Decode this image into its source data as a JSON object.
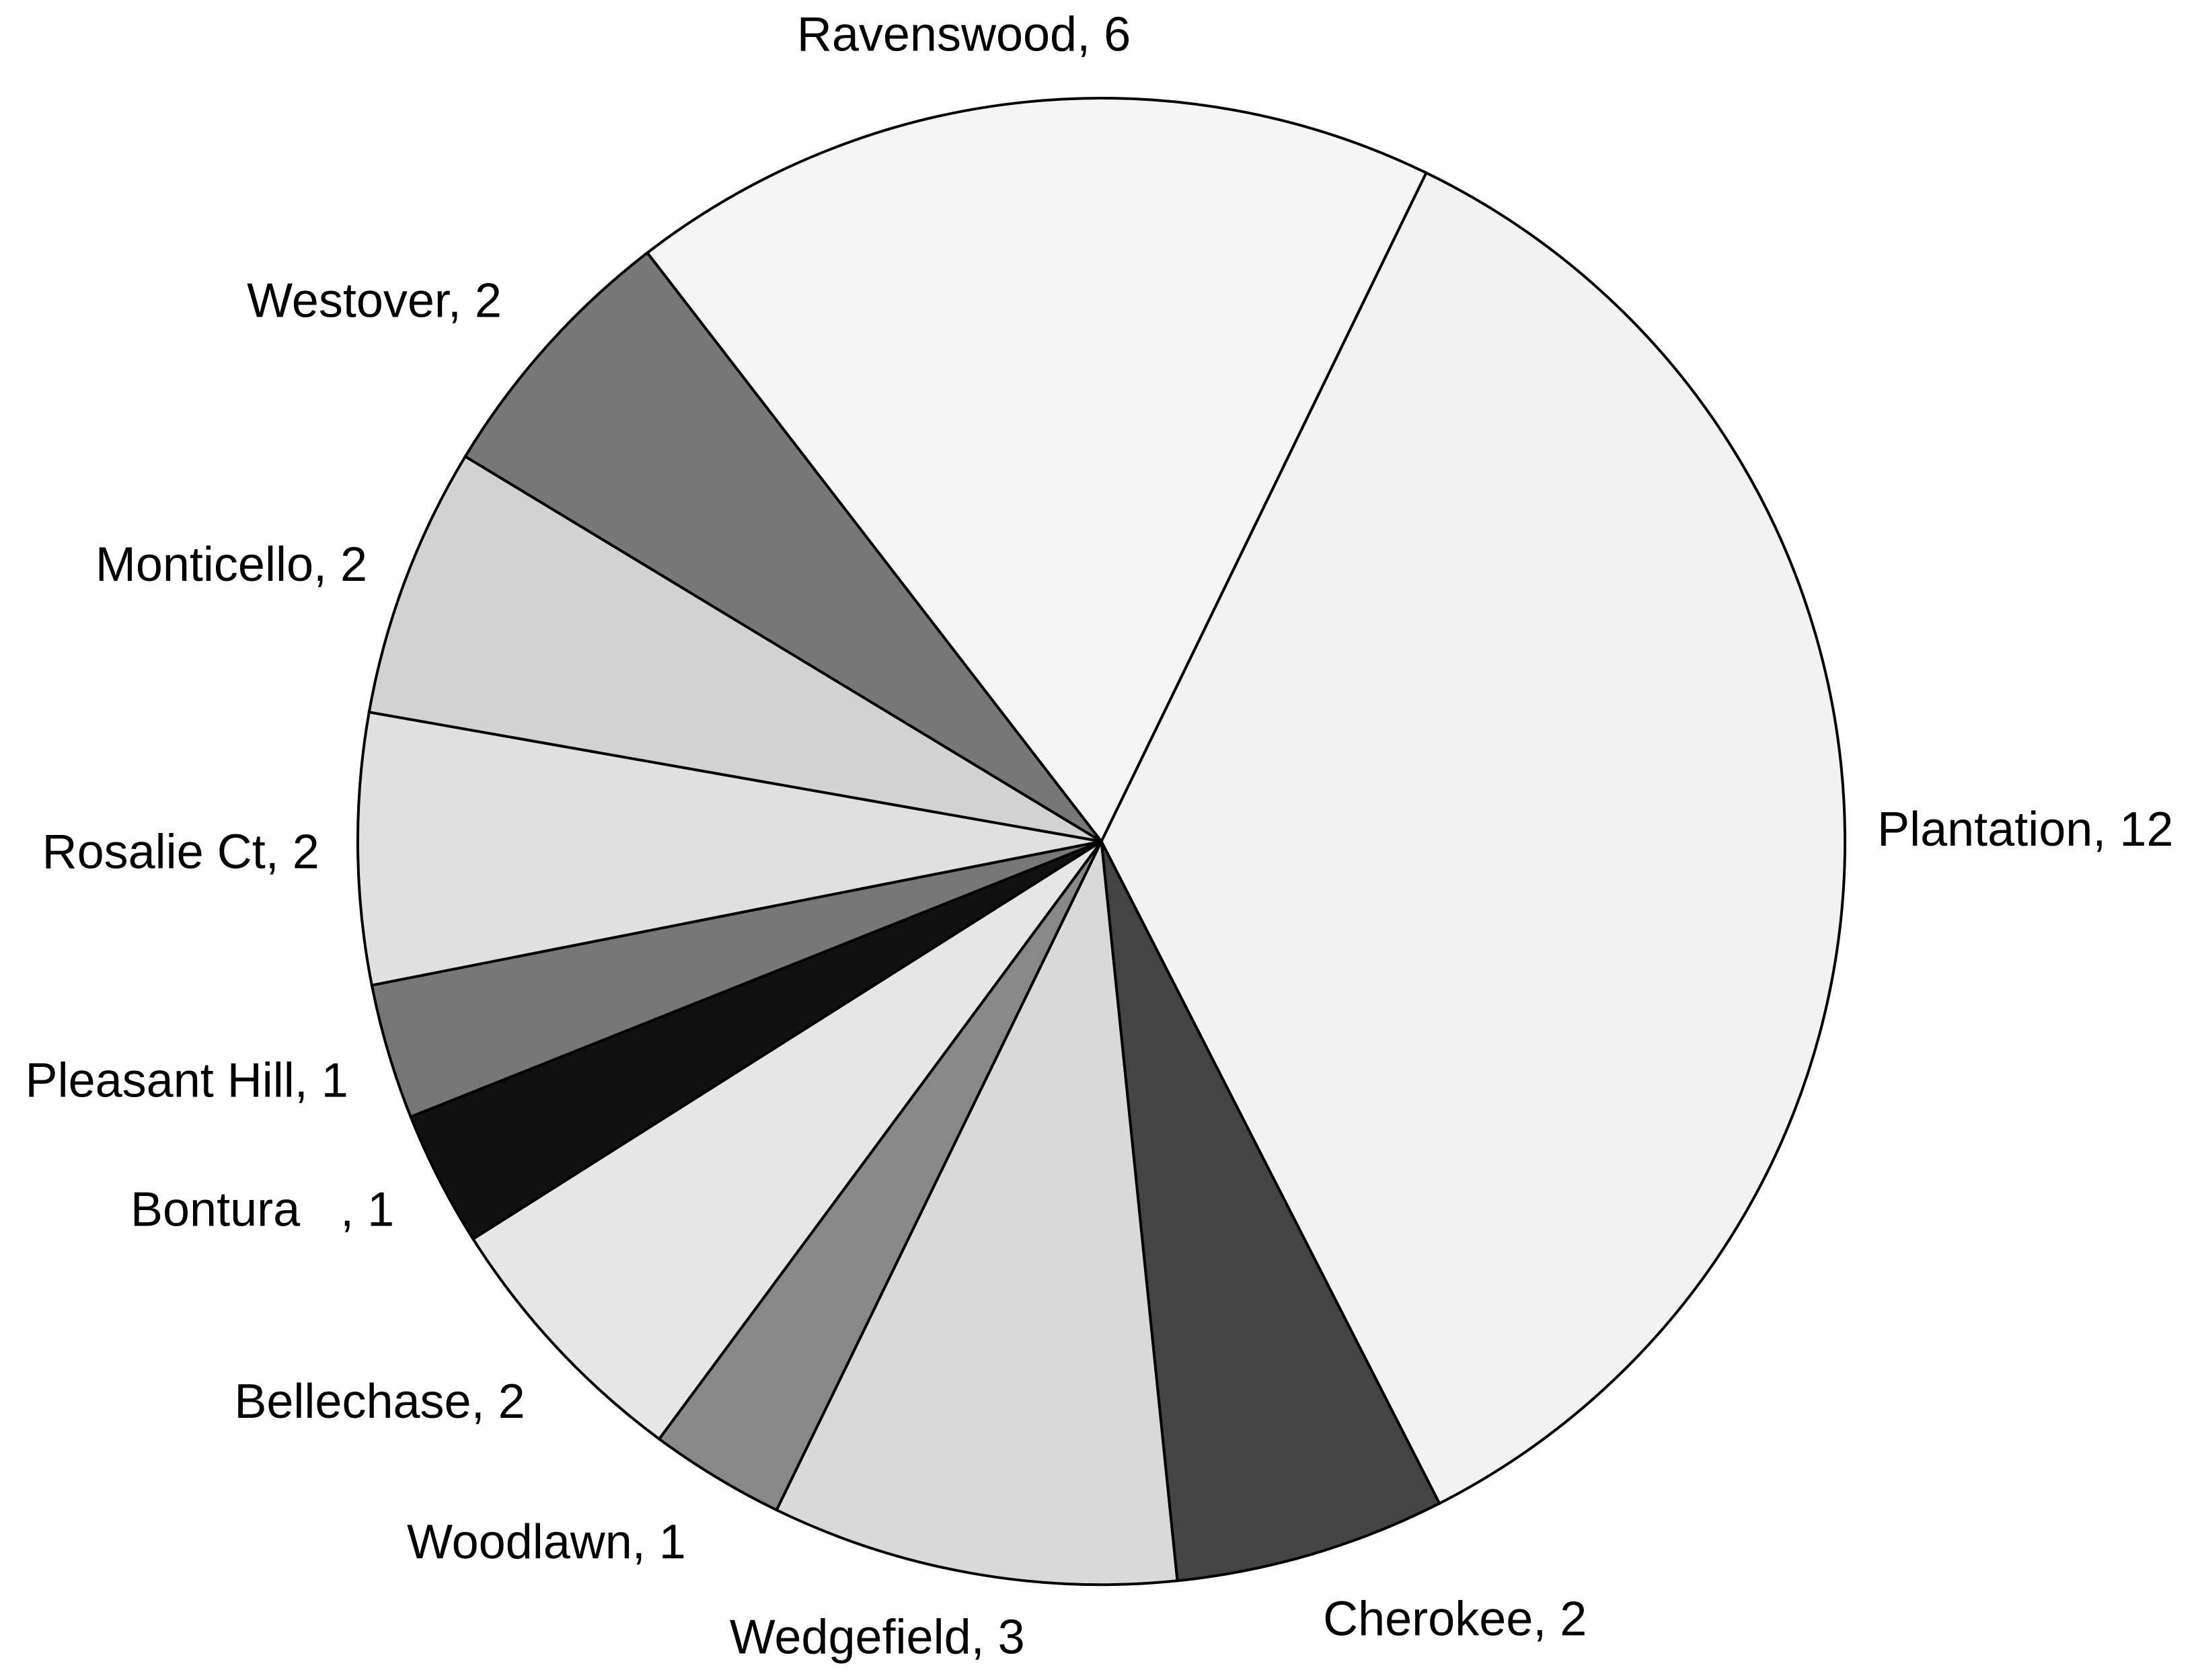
{
  "chart_data": {
    "type": "pie",
    "labels": [
      "Plantation, 12",
      "Cherokee, 2",
      "Wedgefield, 3",
      "Woodlawn, 1",
      "Bellechase, 2",
      "Bontura   , 1",
      "Pleasant Hill, 1",
      "Rosalie Ct, 2",
      "Monticello, 2",
      "Westover, 2",
      "Ravenswood, 6"
    ],
    "values": [
      12,
      2,
      3,
      1,
      2,
      1,
      1,
      2,
      2,
      2,
      6
    ],
    "colors": [
      "#f2f2f2",
      "#444444",
      "#d9d9d9",
      "#888888",
      "#e6e6e6",
      "#111111",
      "#777777",
      "#e0e0e0",
      "#d2d2d2",
      "#787878",
      "#f5f5f5"
    ]
  }
}
